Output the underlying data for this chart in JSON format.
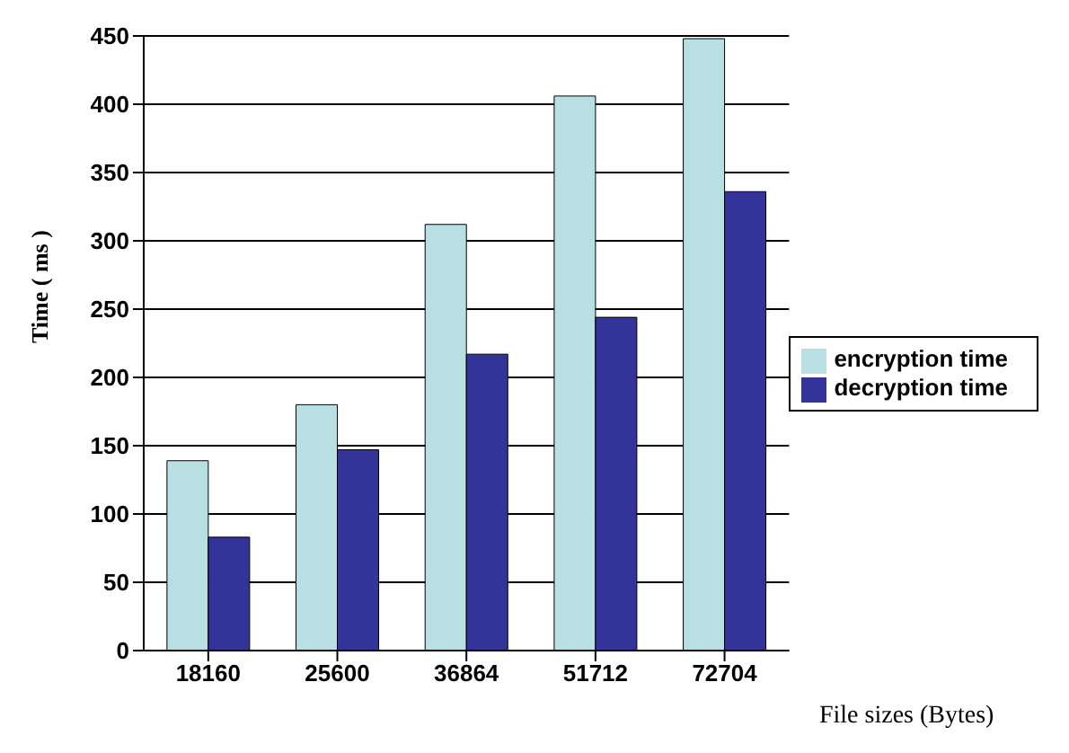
{
  "chart_data": {
    "type": "bar",
    "xlabel": "File sizes (Bytes)",
    "ylabel": "Time ( ms )",
    "categories": [
      "18160",
      "25600",
      "36864",
      "51712",
      "72704"
    ],
    "series": [
      {
        "name": "encryption time",
        "color": "#b8e0e3",
        "values": [
          139,
          180,
          312,
          406,
          448
        ]
      },
      {
        "name": "decryption time",
        "color": "#333399",
        "values": [
          83,
          147,
          217,
          244,
          336
        ]
      }
    ],
    "ylim": [
      0,
      450
    ],
    "yticks": [
      0,
      50,
      100,
      150,
      200,
      250,
      300,
      350,
      400,
      450
    ],
    "grid": "y",
    "legend": "right"
  }
}
